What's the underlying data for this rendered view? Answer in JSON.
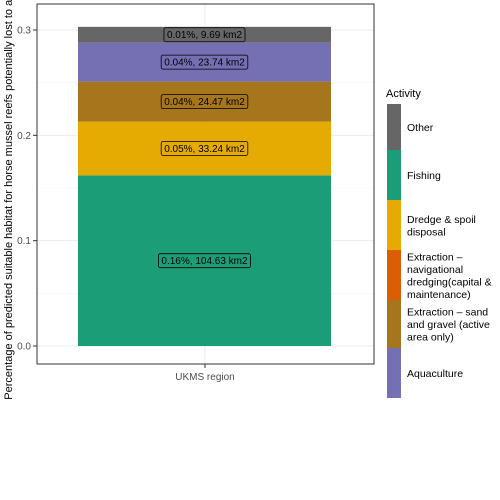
{
  "chart_data": {
    "type": "bar",
    "stacked": true,
    "categories": [
      "UKMS region"
    ],
    "xlabel": "UKMS region",
    "ylabel": "Percentage of predicted suitable habitat for horse mussel reefs potentially lost to activity",
    "ylim": [
      0,
      0.3
    ],
    "yticks": [
      "0.0",
      "0.1",
      "0.2",
      "0.3"
    ],
    "grid": true,
    "legend_title": "Activity",
    "legend_position": "right",
    "legend": [
      {
        "label": "Other",
        "color": "#666666"
      },
      {
        "label": "Fishing",
        "color": "#1b9e77"
      },
      {
        "label": "Dredge & spoil disposal",
        "color": "#e6ab02"
      },
      {
        "label": "Extraction – navigational dredging(capital & maintenance)",
        "color": "#d95f02"
      },
      {
        "label": "Extraction – sand and gravel (active area only)",
        "color": "#a6761d"
      },
      {
        "label": "Aquaculture",
        "color": "#7570b3"
      }
    ],
    "series": [
      {
        "name": "Fishing",
        "values": [
          0.162
        ],
        "color": "#1b9e77",
        "label": "0.16%, 104.63 km2"
      },
      {
        "name": "Dredge & spoil disposal",
        "values": [
          0.051
        ],
        "color": "#e6ab02",
        "label": "0.05%, 33.24 km2"
      },
      {
        "name": "Extraction – sand and gravel (active area only)",
        "values": [
          0.038
        ],
        "color": "#a6761d",
        "label": "0.04%, 24.47 km2"
      },
      {
        "name": "Aquaculture",
        "values": [
          0.037
        ],
        "color": "#7570b3",
        "label": "0.04%, 23.74 km2"
      },
      {
        "name": "Other",
        "values": [
          0.015
        ],
        "color": "#666666",
        "label": "0.01%,  9.69 km2"
      }
    ]
  }
}
